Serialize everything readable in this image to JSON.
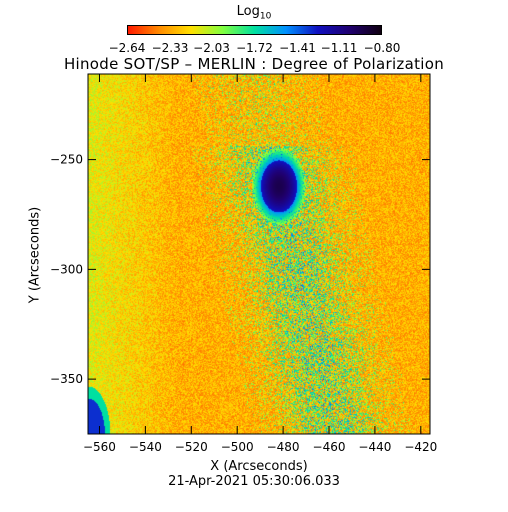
{
  "colorbar": {
    "title": "Log",
    "title_subscript": "10",
    "ticks": [
      "−2.64",
      "−2.33",
      "−2.03",
      "−1.72",
      "−1.41",
      "−1.11",
      "−0.80"
    ],
    "tick_values": [
      -2.64,
      -2.33,
      -2.03,
      -1.72,
      -1.41,
      -1.11,
      -0.8
    ],
    "colors": [
      "#ff1a00",
      "#ff8c00",
      "#ffe000",
      "#80ff40",
      "#00e0a0",
      "#0090ff",
      "#1010c0",
      "#200070",
      "#100010"
    ]
  },
  "chart_data": {
    "type": "heatmap",
    "title": "Hinode SOT/SP – MERLIN : Degree of Polarization",
    "xlabel": "X (Arcseconds)",
    "ylabel": "Y (Arcseconds)",
    "xlim": [
      -565,
      -416
    ],
    "ylim": [
      -375,
      -211
    ],
    "x_ticks": [
      -560,
      -540,
      -520,
      -500,
      -480,
      -460,
      -440,
      -420
    ],
    "x_tick_labels": [
      "−560",
      "−540",
      "−520",
      "−500",
      "−480",
      "−460",
      "−440",
      "−420"
    ],
    "y_ticks": [
      -250,
      -300,
      -350
    ],
    "y_tick_labels": [
      "−250",
      "−300",
      "−350"
    ],
    "value_range": [
      -2.64,
      -0.8
    ],
    "features": [
      {
        "kind": "sunspot",
        "center": [
          -482,
          -262
        ],
        "value": -0.85
      },
      {
        "kind": "limb",
        "center": [
          -565,
          -375
        ],
        "value": -1.2
      }
    ]
  },
  "date": "21-Apr-2021 05:30:06.033"
}
